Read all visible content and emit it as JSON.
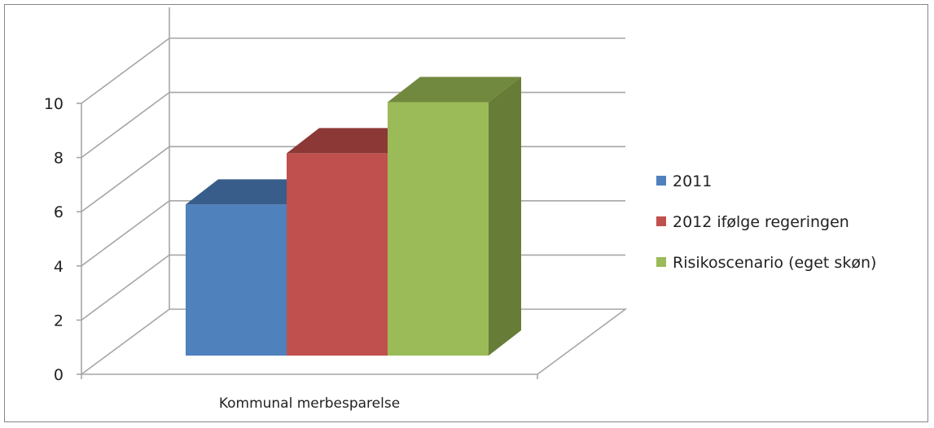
{
  "chart_data": {
    "type": "bar",
    "categories": [
      "Kommunal merbesparelse"
    ],
    "series": [
      {
        "name": "2011",
        "values": [
          5.9
        ],
        "color": "#4f81bd",
        "top_color": "#385d8a",
        "side_color": "#3a5f8c"
      },
      {
        "name": "2012 ifølge regeringen",
        "values": [
          7.9
        ],
        "color": "#c0504d",
        "top_color": "#8c3836",
        "side_color": "#8c3836"
      },
      {
        "name": "Risikoscenario (eget skøn)",
        "values": [
          9.9
        ],
        "color": "#9bbb59",
        "top_color": "#71893f",
        "side_color": "#677d37"
      }
    ],
    "yticks": [
      "0",
      "2",
      "4",
      "6",
      "8",
      "10"
    ],
    "ylim": [
      0,
      10
    ],
    "grid": true,
    "legend_position": "right",
    "style": "3d-column"
  }
}
